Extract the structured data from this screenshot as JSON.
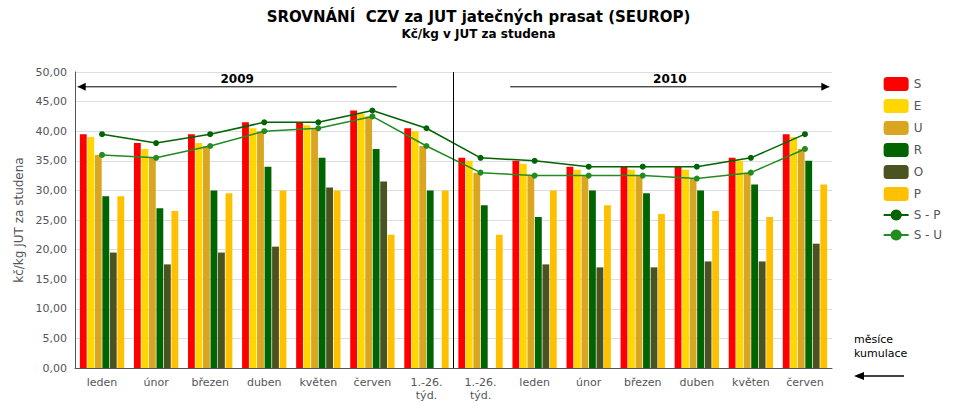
{
  "chart_data": {
    "type": "bar",
    "title": "SROVNÁNÍ  CZV za JUT jatečných prasat (SEUROP)",
    "subtitle": "Kč/kg v JUT za studena",
    "ylabel": "kč/kg JUT za studena",
    "categories": [
      "leden",
      "únor",
      "březen",
      "duben",
      "květen",
      "červen",
      "1.-26.\ntýd.",
      "1.-26.\ntýd.",
      "leden",
      "únor",
      "březen",
      "duben",
      "květen",
      "červen"
    ],
    "series": [
      {
        "name": "S",
        "color": "#FF0000",
        "values": [
          39.5,
          38.0,
          39.5,
          41.5,
          41.5,
          43.5,
          40.5,
          35.5,
          35.0,
          34.0,
          34.0,
          34.0,
          35.5,
          39.5
        ]
      },
      {
        "name": "E",
        "color": "#FFD700",
        "values": [
          39.0,
          37.0,
          38.0,
          40.5,
          41.0,
          43.0,
          40.0,
          35.0,
          34.5,
          33.5,
          33.5,
          33.5,
          35.0,
          39.0
        ]
      },
      {
        "name": "U",
        "color": "#DAA520",
        "values": [
          36.0,
          35.5,
          37.5,
          40.0,
          40.5,
          42.5,
          37.5,
          33.0,
          32.5,
          32.5,
          32.5,
          32.0,
          33.0,
          37.0
        ]
      },
      {
        "name": "R",
        "color": "#006400",
        "values": [
          29.0,
          27.0,
          30.0,
          34.0,
          35.5,
          37.0,
          30.0,
          27.5,
          25.5,
          30.0,
          29.5,
          30.0,
          31.0,
          35.0
        ]
      },
      {
        "name": "O",
        "color": "#4B5320",
        "values": [
          19.5,
          17.5,
          19.5,
          20.5,
          30.5,
          31.5,
          0,
          0,
          17.5,
          17.0,
          17.0,
          18.0,
          18.0,
          21.0
        ]
      },
      {
        "name": "P",
        "color": "#FFC000",
        "values": [
          29.0,
          26.5,
          29.5,
          30.0,
          30.0,
          22.5,
          30.0,
          22.5,
          30.0,
          27.5,
          26.0,
          26.5,
          25.5,
          31.0
        ]
      },
      {
        "name": "S - P",
        "type": "line",
        "color": "#006400",
        "marker": "circle",
        "values": [
          39.5,
          38.0,
          39.5,
          41.5,
          41.5,
          43.5,
          40.5,
          35.5,
          35.0,
          34.0,
          34.0,
          34.0,
          35.5,
          39.5
        ]
      },
      {
        "name": "S - U",
        "type": "line",
        "color": "#228B22",
        "marker": "circle",
        "values": [
          36.0,
          35.5,
          37.5,
          40.0,
          40.5,
          42.5,
          37.5,
          33.0,
          32.5,
          32.5,
          32.5,
          32.0,
          33.0,
          37.0
        ]
      }
    ],
    "ylim": [
      0,
      50
    ],
    "yticks": [
      {
        "value": 0,
        "label": "0,00"
      },
      {
        "value": 5,
        "label": "5,00"
      },
      {
        "value": 10,
        "label": "10,00"
      },
      {
        "value": 15,
        "label": "15,00"
      },
      {
        "value": 20,
        "label": "20,00"
      },
      {
        "value": 25,
        "label": "25,00"
      },
      {
        "value": 30,
        "label": "30,00"
      },
      {
        "value": 35,
        "label": "35,00"
      },
      {
        "value": 40,
        "label": "40,00"
      },
      {
        "value": 45,
        "label": "45,00"
      },
      {
        "value": 50,
        "label": "50,00"
      }
    ],
    "grid": true,
    "legend": "right",
    "annotations": [
      "2009",
      "2010",
      "měsíce\nkumulace"
    ]
  }
}
